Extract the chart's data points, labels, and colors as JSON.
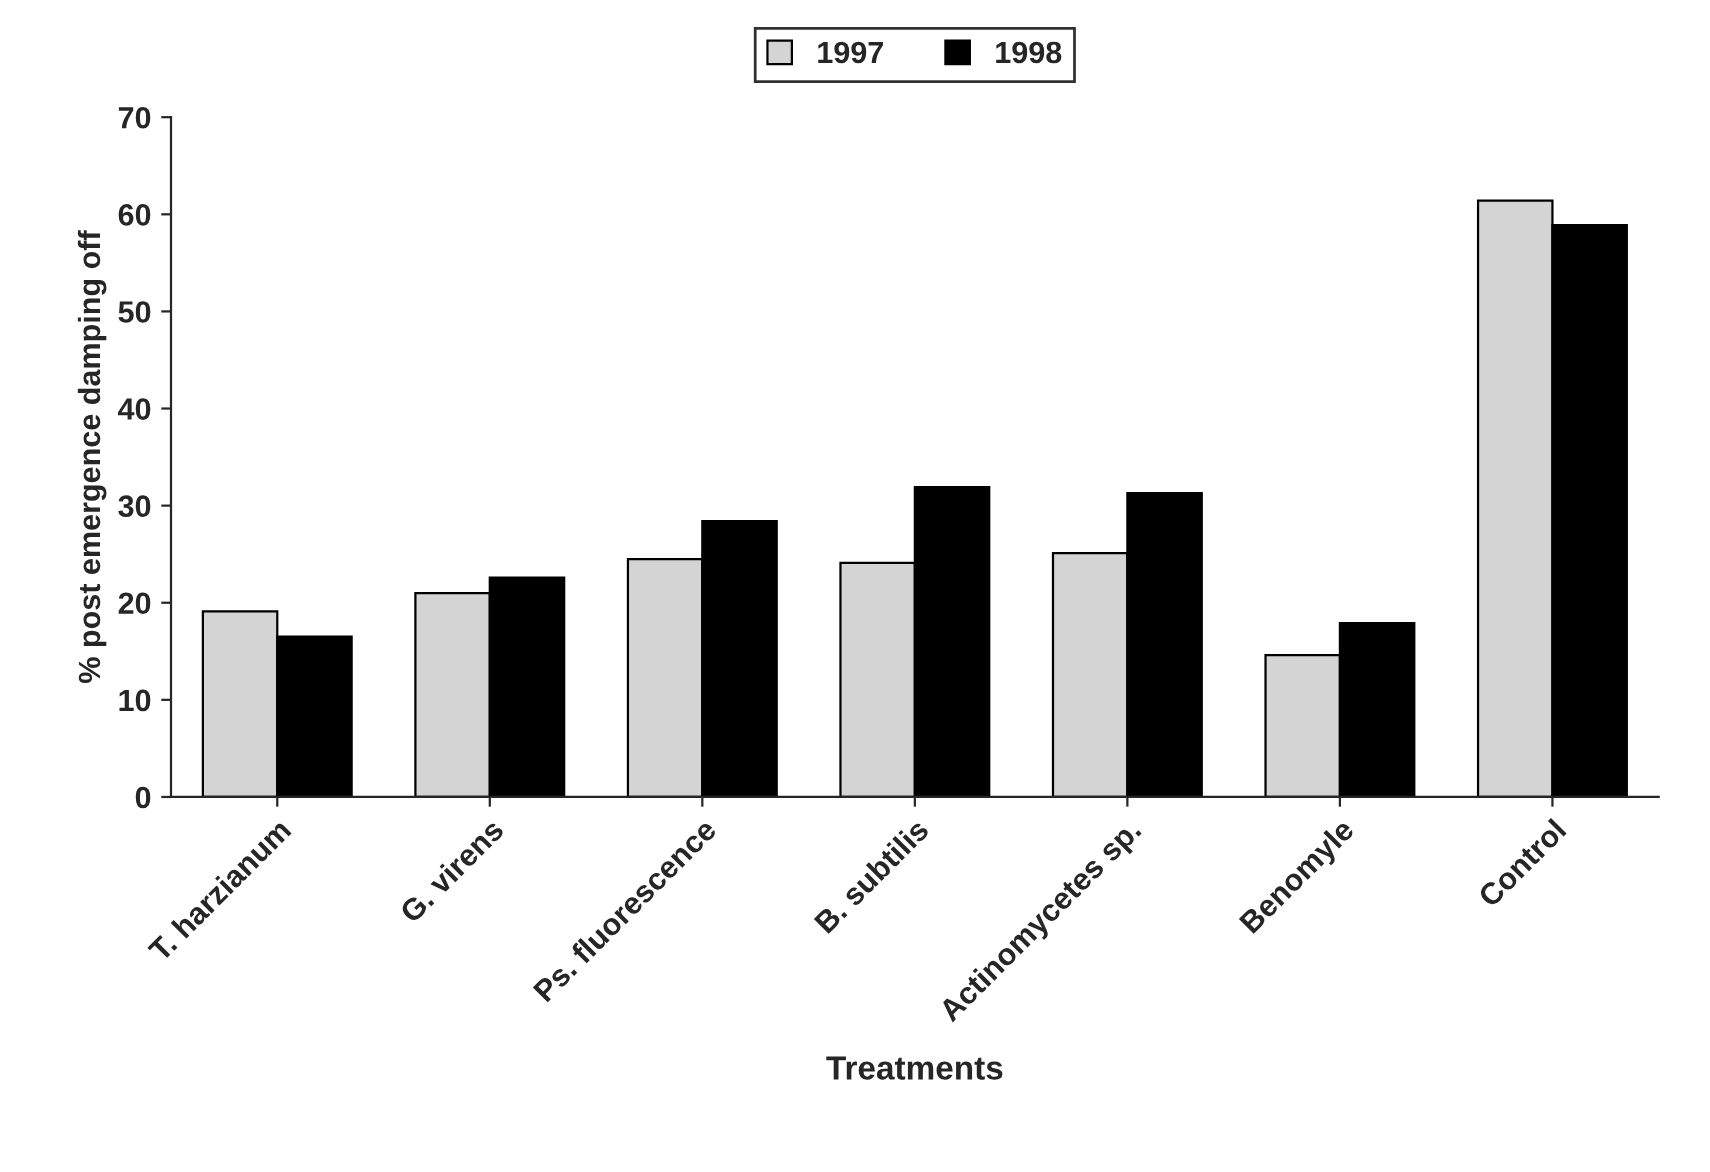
{
  "chart_data": {
    "type": "bar",
    "xlabel": "Treatments",
    "ylabel": "% post emergence damping off",
    "categories": [
      "T. harzianum",
      "G. virens",
      "Ps. fluorescence",
      "B. subtilis",
      "Actinomycetes sp.",
      "Benomyle",
      "Control"
    ],
    "series": [
      {
        "name": "1997",
        "color": "#d4d4d4",
        "values": [
          19.1,
          21,
          24.5,
          24.1,
          25.1,
          14.6,
          61.4
        ]
      },
      {
        "name": "1998",
        "color": "#000000",
        "values": [
          16.5,
          22.6,
          28.4,
          31.9,
          31.3,
          17.9,
          58.9
        ]
      }
    ],
    "ylim": [
      0,
      70
    ],
    "yticks": [
      0,
      10,
      20,
      30,
      40,
      50,
      60,
      70
    ],
    "grid": false,
    "legend": "top"
  }
}
